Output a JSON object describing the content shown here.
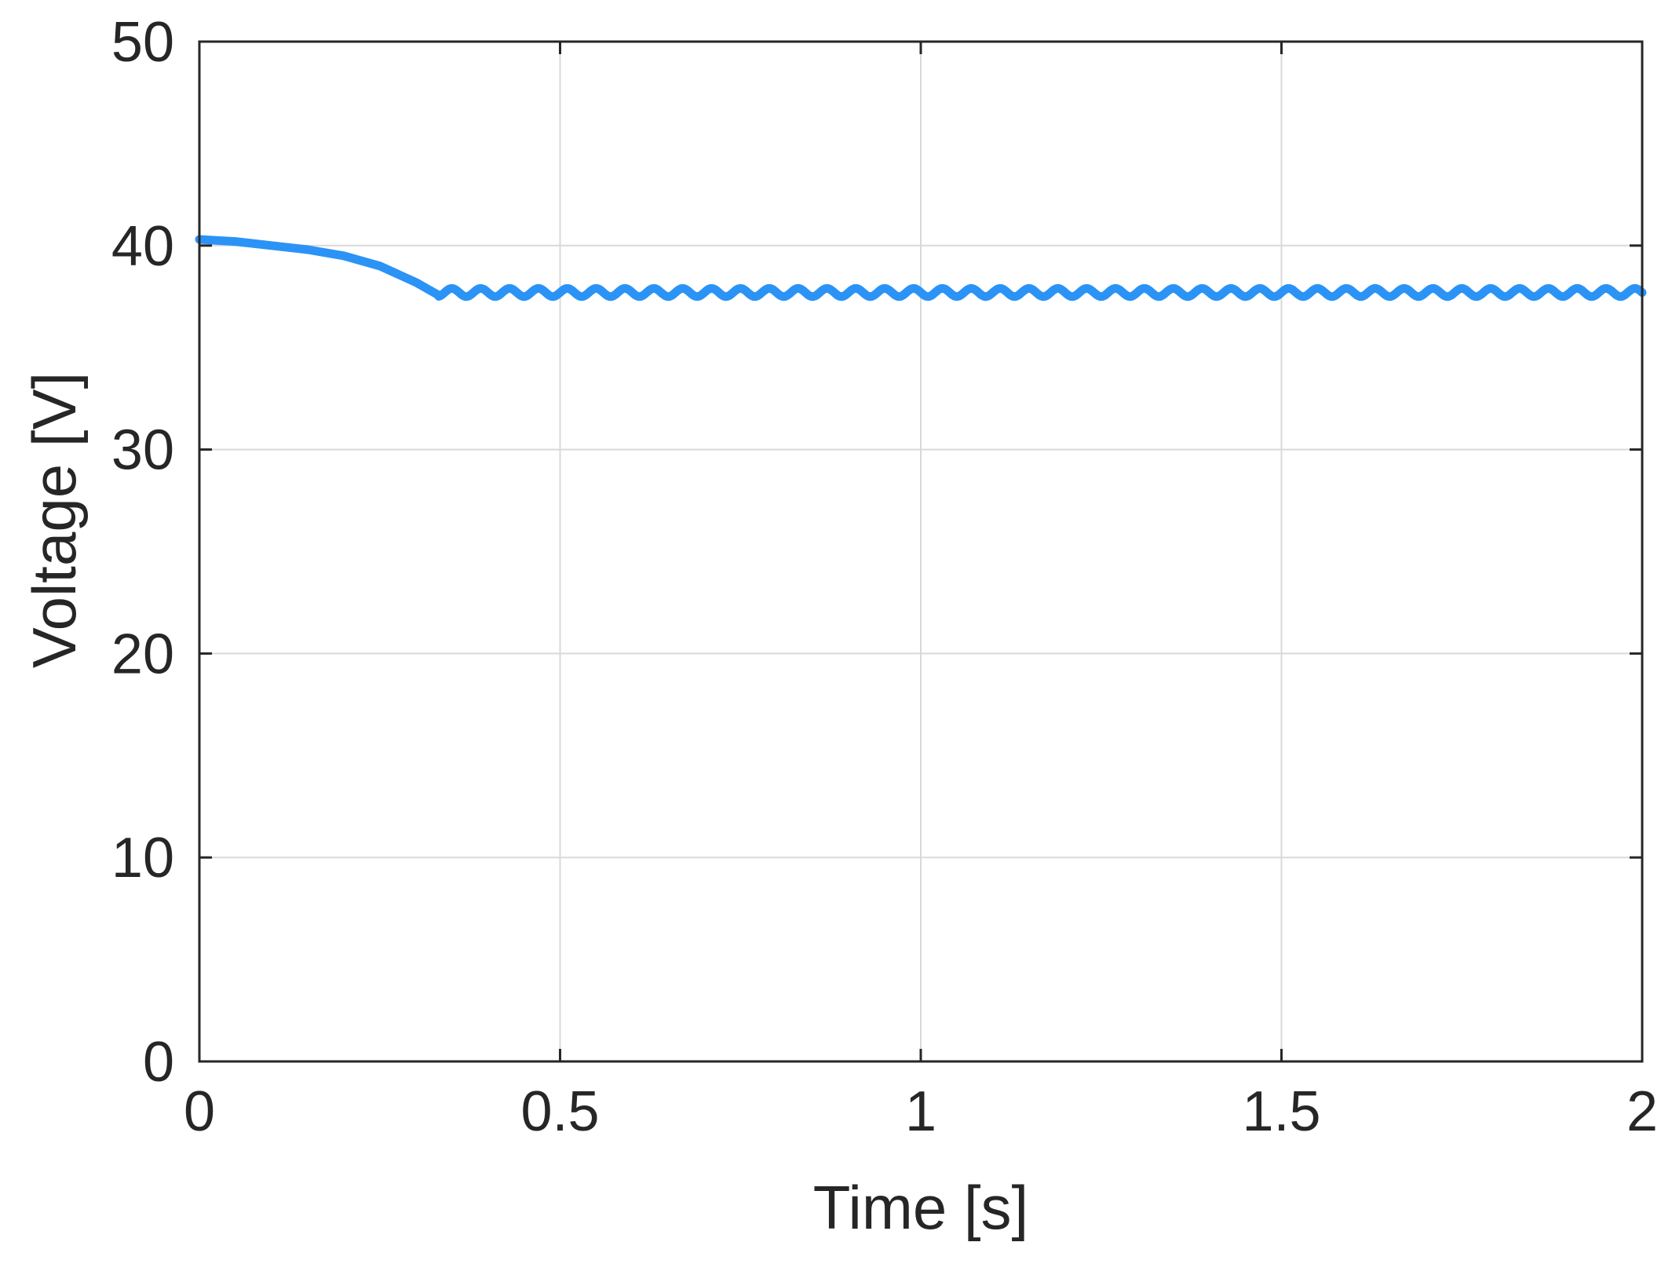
{
  "chart_data": {
    "type": "line",
    "title": "",
    "xlabel": "Time [s]",
    "ylabel": "Voltage [V]",
    "xlim": [
      0,
      2
    ],
    "ylim": [
      0,
      50
    ],
    "xticks": [
      0,
      0.5,
      1,
      1.5,
      2
    ],
    "xtick_labels": [
      "0",
      "0.5",
      "1",
      "1.5",
      "2"
    ],
    "yticks": [
      0,
      10,
      20,
      30,
      40,
      50
    ],
    "ytick_labels": [
      "0",
      "10",
      "20",
      "30",
      "40",
      "50"
    ],
    "grid": true,
    "legend": "none",
    "series": [
      {
        "color": "#2b93f5",
        "x": [
          0,
          0.05,
          0.1,
          0.15,
          0.2,
          0.25,
          0.3,
          0.33,
          0.35,
          0.4,
          0.5,
          0.75,
          1.0,
          1.25,
          1.5,
          1.75,
          2.0
        ],
        "y": [
          40.3,
          40.2,
          40.0,
          39.8,
          39.5,
          39.0,
          38.2,
          37.6,
          37.5,
          37.5,
          37.5,
          37.5,
          37.5,
          37.5,
          37.5,
          37.5,
          37.7
        ],
        "ripple": {
          "start_x": 0.33,
          "center_y": 37.5,
          "amplitude": 0.4,
          "period": 0.04
        }
      }
    ]
  }
}
